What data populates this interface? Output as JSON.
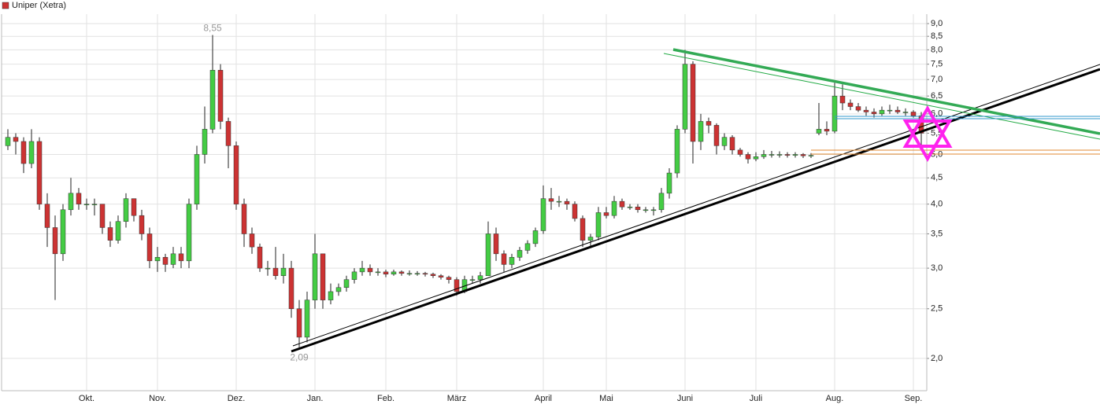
{
  "chart_data": {
    "type": "candlestick",
    "title": "Uniper (Xetra)",
    "categories": [
      null,
      null,
      null,
      null,
      null,
      null,
      null,
      null,
      null,
      null,
      "Okt.",
      null,
      null,
      null,
      null,
      null,
      null,
      null,
      null,
      "Nov.",
      null,
      null,
      null,
      null,
      null,
      null,
      null,
      null,
      null,
      "Dez.",
      null,
      null,
      null,
      null,
      null,
      null,
      null,
      null,
      null,
      "Jan.",
      null,
      null,
      null,
      null,
      null,
      null,
      null,
      null,
      "Feb.",
      null,
      null,
      null,
      null,
      null,
      null,
      null,
      null,
      "März",
      null,
      null,
      null,
      null,
      null,
      null,
      null,
      null,
      null,
      null,
      "April",
      null,
      null,
      null,
      null,
      null,
      null,
      null,
      "Mai",
      null,
      null,
      null,
      null,
      null,
      null,
      null,
      null,
      null,
      "Juni",
      null,
      null,
      null,
      null,
      null,
      null,
      null,
      null,
      "Juli",
      null,
      null,
      null,
      null,
      null,
      null,
      null,
      null,
      null,
      "Aug.",
      null,
      null,
      null,
      null,
      null,
      null,
      null,
      null,
      null,
      "Sep.",
      null
    ],
    "open": [
      5.2,
      5.4,
      5.3,
      4.8,
      5.3,
      4.0,
      3.6,
      3.2,
      3.9,
      4.2,
      4.0,
      4.0,
      4.0,
      3.6,
      3.4,
      3.7,
      4.1,
      3.8,
      3.5,
      3.1,
      3.15,
      3.05,
      3.2,
      3.1,
      4.0,
      5.0,
      5.6,
      7.3,
      5.8,
      5.2,
      4.0,
      3.5,
      3.3,
      3.0,
      3.0,
      2.9,
      3.0,
      2.5,
      2.2,
      2.6,
      3.2,
      2.6,
      2.7,
      2.75,
      2.85,
      2.95,
      3.0,
      2.95,
      2.95,
      2.92,
      2.95,
      2.93,
      2.93,
      2.93,
      2.92,
      2.9,
      2.88,
      2.85,
      2.7,
      2.85,
      2.85,
      2.9,
      3.5,
      3.2,
      3.05,
      3.15,
      3.25,
      3.35,
      3.55,
      4.1,
      4.05,
      4.05,
      4.0,
      3.75,
      3.4,
      3.45,
      3.85,
      3.8,
      4.05,
      3.95,
      3.95,
      3.9,
      3.9,
      3.9,
      4.2,
      4.6,
      5.6,
      7.5,
      5.3,
      5.8,
      5.7,
      5.2,
      5.4,
      5.1,
      5.0,
      4.9,
      4.95,
      5.0,
      5.0,
      5.0,
      4.98,
      5.0,
      4.97,
      5.5,
      5.6,
      5.55,
      6.5,
      6.3,
      6.2,
      6.1,
      6.05,
      6.0,
      6.1,
      6.1,
      6.05,
      6.05,
      5.95
    ],
    "high": [
      5.6,
      5.5,
      5.4,
      5.6,
      5.4,
      4.2,
      3.8,
      4.0,
      4.5,
      4.3,
      4.1,
      4.1,
      4.0,
      3.7,
      3.8,
      4.2,
      4.1,
      3.9,
      3.6,
      3.3,
      3.2,
      3.3,
      3.3,
      4.1,
      5.2,
      6.2,
      8.55,
      7.5,
      5.9,
      5.3,
      4.1,
      3.6,
      3.35,
      3.1,
      3.3,
      3.2,
      3.1,
      2.6,
      2.7,
      3.5,
      3.2,
      2.8,
      2.8,
      2.9,
      3.0,
      3.1,
      3.05,
      3.0,
      2.98,
      2.98,
      2.97,
      2.97,
      2.96,
      2.95,
      2.94,
      2.92,
      2.9,
      2.88,
      2.9,
      2.9,
      2.95,
      3.7,
      3.6,
      3.25,
      3.2,
      3.3,
      3.4,
      3.6,
      4.35,
      4.3,
      4.15,
      4.1,
      4.05,
      3.8,
      3.5,
      3.95,
      3.95,
      4.15,
      4.1,
      4.0,
      4.0,
      3.95,
      3.95,
      4.3,
      4.7,
      5.7,
      8.0,
      7.6,
      6.0,
      5.9,
      5.75,
      5.5,
      5.45,
      5.15,
      5.05,
      5.05,
      5.1,
      5.08,
      5.07,
      5.05,
      5.05,
      5.03,
      5.03,
      6.3,
      5.8,
      6.9,
      6.85,
      6.4,
      6.3,
      6.2,
      6.15,
      6.2,
      6.25,
      6.2,
      6.15,
      6.1,
      6.05
    ],
    "low": [
      5.1,
      5.0,
      4.6,
      4.7,
      3.9,
      3.3,
      2.6,
      3.1,
      3.8,
      3.9,
      3.9,
      3.8,
      3.5,
      3.3,
      3.35,
      3.6,
      3.7,
      3.4,
      3.0,
      2.95,
      2.95,
      3.0,
      3.0,
      3.0,
      3.9,
      4.8,
      5.5,
      5.6,
      4.7,
      3.9,
      3.3,
      3.2,
      2.95,
      2.9,
      2.85,
      2.8,
      2.4,
      2.09,
      2.15,
      2.5,
      2.5,
      2.55,
      2.65,
      2.7,
      2.8,
      2.9,
      2.9,
      2.9,
      2.88,
      2.9,
      2.9,
      2.9,
      2.9,
      2.89,
      2.87,
      2.85,
      2.8,
      2.65,
      2.68,
      2.8,
      2.8,
      2.9,
      3.1,
      2.95,
      3.0,
      3.1,
      3.2,
      3.3,
      3.5,
      3.9,
      3.95,
      3.9,
      3.7,
      3.3,
      3.3,
      3.4,
      3.75,
      3.75,
      3.9,
      3.9,
      3.85,
      3.85,
      3.8,
      3.85,
      4.1,
      4.5,
      5.5,
      4.8,
      5.1,
      5.5,
      5.0,
      5.1,
      5.0,
      4.95,
      4.8,
      4.85,
      4.9,
      4.93,
      4.93,
      4.93,
      4.93,
      4.92,
      4.92,
      5.45,
      5.45,
      5.5,
      6.1,
      6.1,
      6.05,
      5.95,
      5.9,
      5.95,
      6.0,
      6.0,
      5.95,
      5.9,
      5.2
    ],
    "close": [
      5.4,
      5.3,
      4.8,
      5.3,
      4.0,
      3.6,
      3.2,
      3.9,
      4.2,
      4.0,
      4.0,
      4.0,
      3.6,
      3.4,
      3.7,
      4.1,
      3.8,
      3.5,
      3.1,
      3.15,
      3.05,
      3.2,
      3.1,
      4.0,
      5.0,
      5.6,
      7.3,
      5.8,
      5.2,
      4.0,
      3.5,
      3.3,
      3.0,
      3.0,
      2.9,
      3.0,
      2.5,
      2.2,
      2.6,
      3.2,
      2.6,
      2.7,
      2.75,
      2.85,
      2.95,
      3.0,
      2.95,
      2.95,
      2.92,
      2.95,
      2.93,
      2.93,
      2.93,
      2.92,
      2.9,
      2.88,
      2.85,
      2.7,
      2.85,
      2.85,
      2.9,
      3.5,
      3.2,
      3.05,
      3.15,
      3.25,
      3.35,
      3.55,
      4.1,
      4.05,
      4.05,
      4.0,
      3.75,
      3.4,
      3.45,
      3.85,
      3.8,
      4.05,
      3.95,
      3.95,
      3.9,
      3.9,
      3.9,
      4.2,
      4.6,
      5.6,
      7.5,
      5.3,
      5.8,
      5.7,
      5.2,
      5.4,
      5.1,
      5.0,
      4.9,
      4.95,
      5.0,
      5.0,
      5.0,
      4.98,
      5.0,
      4.97,
      4.98,
      5.6,
      5.55,
      6.5,
      6.3,
      6.2,
      6.1,
      6.05,
      6.0,
      6.1,
      6.1,
      6.05,
      6.05,
      5.95,
      5.5
    ],
    "up_color": "#44cc44",
    "down_color": "#cc3333",
    "max_label": "8,55",
    "min_label": "2,09",
    "log_scale": true,
    "grid": true,
    "ylim": [
      1.73,
      9.39
    ],
    "yticks": [
      {
        "value": 2,
        "label": "2,0"
      },
      {
        "value": 2.5,
        "label": "2,5"
      },
      {
        "value": 3,
        "label": "3,0"
      },
      {
        "value": 3.5,
        "label": "3,5"
      },
      {
        "value": 4,
        "label": "4,0"
      },
      {
        "value": 4.5,
        "label": "4,5"
      },
      {
        "value": 5,
        "label": "5,0"
      },
      {
        "value": 5.5,
        "label": "5,5"
      },
      {
        "value": 6,
        "label": "6,0"
      },
      {
        "value": 6.5,
        "label": "6,5"
      },
      {
        "value": 7,
        "label": "7,0"
      },
      {
        "value": 7.5,
        "label": "7,5"
      },
      {
        "value": 8,
        "label": "8,0"
      },
      {
        "value": 8.5,
        "label": "8,5"
      },
      {
        "value": 9,
        "label": "9,0"
      }
    ]
  }
}
